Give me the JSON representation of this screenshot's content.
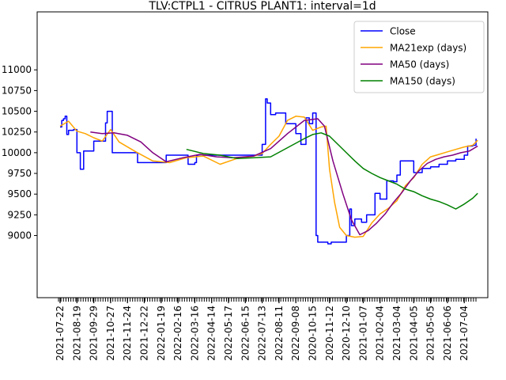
{
  "chart_data": {
    "type": "line",
    "title": "TLV:CTPL1 - CITRUS PLANT1: interval=1d",
    "xlabel": "",
    "ylabel": "",
    "ylim": [
      8250,
      11700
    ],
    "grid": false,
    "legend_position": "upper-right",
    "x_tick_labels": [
      "2021-07-22",
      "2021-08-19",
      "2021-09-29",
      "2021-10-27",
      "2021-11-24",
      "2021-12-22",
      "2022-01-19",
      "2022-02-16",
      "2022-03-16",
      "2022-04-14",
      "2022-05-17",
      "2022-06-15",
      "2022-07-13",
      "2022-08-11",
      "2022-09-08",
      "2020-10-15",
      "2020-11-12",
      "2020-12-10",
      "2021-01-07",
      "2021-02-04",
      "2021-03-04",
      "2021-04-05",
      "2021-05-05",
      "2021-06-06",
      "2021-07-04"
    ],
    "y_ticks": [
      9000,
      9250,
      9500,
      9750,
      10000,
      10250,
      10500,
      10750,
      11000
    ],
    "y_tick_labels": [
      "9000",
      "9250",
      "9500",
      "9750",
      "10000",
      "10250",
      "10500",
      "10750",
      "11000"
    ],
    "series": [
      {
        "name": "Close",
        "color": "#0000ff",
        "step": true,
        "points": [
          [
            0,
            10310
          ],
          [
            0.1,
            10390
          ],
          [
            0.2,
            10410
          ],
          [
            0.3,
            10440
          ],
          [
            0.4,
            10220
          ],
          [
            0.5,
            10270
          ],
          [
            0.8,
            10280
          ],
          [
            1,
            10000
          ],
          [
            1.2,
            9800
          ],
          [
            1.4,
            10020
          ],
          [
            1.9,
            10020
          ],
          [
            2,
            10140
          ],
          [
            2.5,
            10140
          ],
          [
            2.7,
            10360
          ],
          [
            2.8,
            10500
          ],
          [
            3.1,
            10000
          ],
          [
            4.6,
            9880
          ],
          [
            5.4,
            9880
          ],
          [
            6.3,
            9970
          ],
          [
            7.5,
            9970
          ],
          [
            7.6,
            9860
          ],
          [
            7.9,
            9860
          ],
          [
            8.0,
            9880
          ],
          [
            8.1,
            9960
          ],
          [
            8.5,
            9970
          ],
          [
            11.8,
            9970
          ],
          [
            12.0,
            10100
          ],
          [
            12.2,
            10650
          ],
          [
            12.3,
            10600
          ],
          [
            12.5,
            10460
          ],
          [
            12.8,
            10480
          ],
          [
            13.4,
            10350
          ],
          [
            14.0,
            10230
          ],
          [
            14.3,
            10100
          ],
          [
            14.6,
            10420
          ],
          [
            14.8,
            10350
          ],
          [
            15.0,
            10480
          ],
          [
            15.2,
            9000
          ],
          [
            15.3,
            8920
          ],
          [
            15.6,
            8920
          ],
          [
            15.9,
            8900
          ],
          [
            16.1,
            8920
          ],
          [
            16.5,
            8920
          ],
          [
            17.0,
            9000
          ],
          [
            17.2,
            9320
          ],
          [
            17.3,
            9120
          ],
          [
            17.5,
            9200
          ],
          [
            17.9,
            9160
          ],
          [
            18.2,
            9250
          ],
          [
            18.7,
            9510
          ],
          [
            19.0,
            9440
          ],
          [
            19.4,
            9660
          ],
          [
            19.8,
            9650
          ],
          [
            20.0,
            9730
          ],
          [
            20.2,
            9900
          ],
          [
            21.0,
            9760
          ],
          [
            21.5,
            9810
          ],
          [
            22.0,
            9830
          ],
          [
            22.5,
            9860
          ],
          [
            23.0,
            9900
          ],
          [
            23.5,
            9920
          ],
          [
            24.0,
            9970
          ],
          [
            24.2,
            10080
          ],
          [
            24.5,
            10090
          ],
          [
            24.7,
            10170
          ]
        ]
      },
      {
        "name": "MA21exp (days)",
        "color": "#ffa500",
        "step": false,
        "points": [
          [
            0,
            10320
          ],
          [
            0.5,
            10380
          ],
          [
            1,
            10260
          ],
          [
            1.5,
            10230
          ],
          [
            2,
            10180
          ],
          [
            2.5,
            10140
          ],
          [
            3,
            10280
          ],
          [
            3.5,
            10130
          ],
          [
            4.5,
            10010
          ],
          [
            5.5,
            9900
          ],
          [
            6.5,
            9880
          ],
          [
            7.5,
            9940
          ],
          [
            8.5,
            9960
          ],
          [
            9.5,
            9860
          ],
          [
            10.5,
            9930
          ],
          [
            11.5,
            9960
          ],
          [
            12,
            9990
          ],
          [
            12.5,
            10100
          ],
          [
            13,
            10200
          ],
          [
            13.5,
            10390
          ],
          [
            14,
            10440
          ],
          [
            14.5,
            10430
          ],
          [
            15,
            10270
          ],
          [
            15.5,
            10310
          ],
          [
            15.8,
            10320
          ],
          [
            16.0,
            9800
          ],
          [
            16.3,
            9400
          ],
          [
            16.6,
            9100
          ],
          [
            17.0,
            9000
          ],
          [
            17.5,
            8980
          ],
          [
            18.0,
            8990
          ],
          [
            18.5,
            9150
          ],
          [
            19.0,
            9260
          ],
          [
            19.5,
            9330
          ],
          [
            20.0,
            9420
          ],
          [
            20.5,
            9600
          ],
          [
            21.0,
            9700
          ],
          [
            21.5,
            9860
          ],
          [
            22.0,
            9950
          ],
          [
            22.5,
            9980
          ],
          [
            23.0,
            10010
          ],
          [
            23.5,
            10040
          ],
          [
            24.0,
            10070
          ],
          [
            24.5,
            10090
          ],
          [
            24.8,
            10150
          ]
        ]
      },
      {
        "name": "MA50 (days)",
        "color": "#800080",
        "step": false,
        "points": [
          [
            1.8,
            10250
          ],
          [
            2.5,
            10230
          ],
          [
            3.2,
            10240
          ],
          [
            4,
            10210
          ],
          [
            4.8,
            10130
          ],
          [
            5.5,
            10000
          ],
          [
            6.3,
            9890
          ],
          [
            7.3,
            9940
          ],
          [
            8.3,
            9980
          ],
          [
            9.3,
            9950
          ],
          [
            10.3,
            9940
          ],
          [
            11.5,
            9960
          ],
          [
            12.5,
            10050
          ],
          [
            13.5,
            10230
          ],
          [
            14.5,
            10390
          ],
          [
            15.3,
            10410
          ],
          [
            15.7,
            10320
          ],
          [
            16.2,
            9900
          ],
          [
            16.8,
            9500
          ],
          [
            17.3,
            9190
          ],
          [
            17.8,
            9010
          ],
          [
            18.3,
            9060
          ],
          [
            18.8,
            9150
          ],
          [
            19.3,
            9260
          ],
          [
            19.8,
            9400
          ],
          [
            20.3,
            9520
          ],
          [
            20.8,
            9660
          ],
          [
            21.3,
            9780
          ],
          [
            21.8,
            9870
          ],
          [
            22.3,
            9920
          ],
          [
            22.8,
            9950
          ],
          [
            23.3,
            9970
          ],
          [
            23.8,
            10000
          ],
          [
            24.3,
            10020
          ],
          [
            24.8,
            10080
          ]
        ]
      },
      {
        "name": "MA150 (days)",
        "color": "#008000",
        "step": false,
        "points": [
          [
            7.5,
            10040
          ],
          [
            8.5,
            9990
          ],
          [
            9.5,
            9970
          ],
          [
            10.5,
            9930
          ],
          [
            11.5,
            9940
          ],
          [
            12.5,
            9950
          ],
          [
            13.5,
            10060
          ],
          [
            14.5,
            10170
          ],
          [
            15.0,
            10220
          ],
          [
            15.5,
            10240
          ],
          [
            16.0,
            10200
          ],
          [
            16.5,
            10100
          ],
          [
            17.0,
            10000
          ],
          [
            17.5,
            9900
          ],
          [
            18.0,
            9810
          ],
          [
            18.5,
            9750
          ],
          [
            19.0,
            9700
          ],
          [
            19.5,
            9660
          ],
          [
            20.0,
            9620
          ],
          [
            20.5,
            9560
          ],
          [
            21.0,
            9530
          ],
          [
            21.5,
            9480
          ],
          [
            22.0,
            9440
          ],
          [
            22.5,
            9410
          ],
          [
            23.0,
            9370
          ],
          [
            23.5,
            9320
          ],
          [
            24.0,
            9380
          ],
          [
            24.5,
            9450
          ],
          [
            24.8,
            9510
          ]
        ]
      }
    ]
  }
}
